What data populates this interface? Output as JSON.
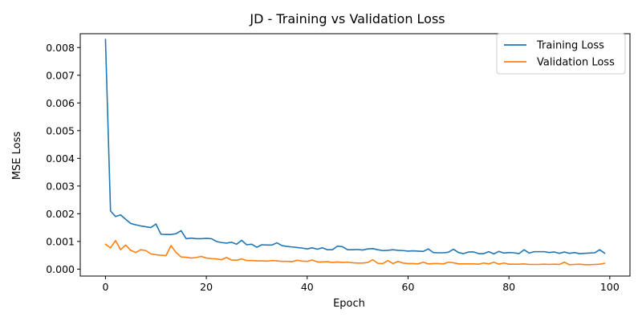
{
  "chart_data": {
    "type": "line",
    "title": "JD - Training vs Validation Loss",
    "xlabel": "Epoch",
    "ylabel": "MSE Loss",
    "xlim": [
      -5,
      104
    ],
    "ylim": [
      -0.00025,
      0.0085
    ],
    "xticks": [
      0,
      20,
      40,
      60,
      80,
      100
    ],
    "xtick_labels": [
      "0",
      "20",
      "40",
      "60",
      "80",
      "100"
    ],
    "yticks": [
      0.0,
      0.001,
      0.002,
      0.003,
      0.004,
      0.005,
      0.006,
      0.007,
      0.008
    ],
    "ytick_labels": [
      "0.000",
      "0.001",
      "0.002",
      "0.003",
      "0.004",
      "0.005",
      "0.006",
      "0.007",
      "0.008"
    ],
    "grid": false,
    "legend_position": "top-right",
    "series": [
      {
        "name": "Training Loss",
        "color": "#1f77b4",
        "x": [
          0,
          1,
          2,
          3,
          4,
          5,
          6,
          7,
          8,
          9,
          10,
          11,
          12,
          13,
          14,
          15,
          16,
          17,
          18,
          19,
          20,
          21,
          22,
          23,
          24,
          25,
          26,
          27,
          28,
          29,
          30,
          31,
          32,
          33,
          34,
          35,
          36,
          37,
          38,
          39,
          40,
          41,
          42,
          43,
          44,
          45,
          46,
          47,
          48,
          49,
          50,
          51,
          52,
          53,
          54,
          55,
          56,
          57,
          58,
          59,
          60,
          61,
          62,
          63,
          64,
          65,
          66,
          67,
          68,
          69,
          70,
          71,
          72,
          73,
          74,
          75,
          76,
          77,
          78,
          79,
          80,
          81,
          82,
          83,
          84,
          85,
          86,
          87,
          88,
          89,
          90,
          91,
          92,
          93,
          94,
          95,
          96,
          97,
          98,
          99
        ],
        "values": [
          0.0083,
          0.0021,
          0.0019,
          0.00196,
          0.0018,
          0.00165,
          0.0016,
          0.00156,
          0.00153,
          0.0015,
          0.00163,
          0.00126,
          0.00125,
          0.00125,
          0.00128,
          0.00139,
          0.0011,
          0.00112,
          0.0011,
          0.0011,
          0.00111,
          0.0011,
          0.001,
          0.00096,
          0.00094,
          0.00097,
          0.0009,
          0.00104,
          0.00088,
          0.0009,
          0.00079,
          0.00088,
          0.00087,
          0.00087,
          0.00095,
          0.00085,
          0.00082,
          0.0008,
          0.00078,
          0.00076,
          0.00073,
          0.00077,
          0.00072,
          0.00077,
          0.0007,
          0.0007,
          0.00083,
          0.00081,
          0.0007,
          0.0007,
          0.00071,
          0.00069,
          0.00073,
          0.00074,
          0.0007,
          0.00067,
          0.00068,
          0.0007,
          0.00068,
          0.00067,
          0.00065,
          0.00066,
          0.00065,
          0.00064,
          0.00073,
          0.0006,
          0.00059,
          0.00059,
          0.00061,
          0.00072,
          0.0006,
          0.00056,
          0.00062,
          0.00062,
          0.00056,
          0.00056,
          0.00063,
          0.00055,
          0.00064,
          0.00058,
          0.0006,
          0.00059,
          0.00056,
          0.0007,
          0.00058,
          0.00063,
          0.00063,
          0.00063,
          0.0006,
          0.00062,
          0.00057,
          0.00062,
          0.00057,
          0.0006,
          0.00056,
          0.00057,
          0.00058,
          0.00059,
          0.0007,
          0.00057
        ]
      },
      {
        "name": "Validation Loss",
        "color": "#ff7f0e",
        "x": [
          0,
          1,
          2,
          3,
          4,
          5,
          6,
          7,
          8,
          9,
          10,
          11,
          12,
          13,
          14,
          15,
          16,
          17,
          18,
          19,
          20,
          21,
          22,
          23,
          24,
          25,
          26,
          27,
          28,
          29,
          30,
          31,
          32,
          33,
          34,
          35,
          36,
          37,
          38,
          39,
          40,
          41,
          42,
          43,
          44,
          45,
          46,
          47,
          48,
          49,
          50,
          51,
          52,
          53,
          54,
          55,
          56,
          57,
          58,
          59,
          60,
          61,
          62,
          63,
          64,
          65,
          66,
          67,
          68,
          69,
          70,
          71,
          72,
          73,
          74,
          75,
          76,
          77,
          78,
          79,
          80,
          81,
          82,
          83,
          84,
          85,
          86,
          87,
          88,
          89,
          90,
          91,
          92,
          93,
          94,
          95,
          96,
          97,
          98,
          99
        ],
        "values": [
          0.0009,
          0.00077,
          0.00103,
          0.0007,
          0.00087,
          0.00068,
          0.0006,
          0.0007,
          0.00067,
          0.00055,
          0.00052,
          0.0005,
          0.00049,
          0.00085,
          0.0006,
          0.00044,
          0.00043,
          0.0004,
          0.00042,
          0.00046,
          0.0004,
          0.00038,
          0.00037,
          0.00034,
          0.00042,
          0.00033,
          0.00032,
          0.00037,
          0.00031,
          0.00031,
          0.0003,
          0.0003,
          0.00029,
          0.00031,
          0.0003,
          0.00028,
          0.00028,
          0.00027,
          0.00032,
          0.00029,
          0.00028,
          0.00033,
          0.00026,
          0.00026,
          0.00027,
          0.00024,
          0.00026,
          0.00024,
          0.00025,
          0.00023,
          0.00022,
          0.00022,
          0.00024,
          0.00034,
          0.00021,
          0.0002,
          0.00031,
          0.0002,
          0.00028,
          0.00022,
          0.0002,
          0.0002,
          0.00019,
          0.00025,
          0.00019,
          0.0002,
          0.0002,
          0.00019,
          0.00025,
          0.00023,
          0.00019,
          0.00019,
          0.00019,
          0.00019,
          0.00018,
          0.00022,
          0.00019,
          0.00025,
          0.00018,
          0.00022,
          0.00018,
          0.00018,
          0.00018,
          0.00019,
          0.00017,
          0.00017,
          0.00017,
          0.00018,
          0.00017,
          0.00018,
          0.00017,
          0.00025,
          0.00016,
          0.00017,
          0.00018,
          0.00016,
          0.00016,
          0.00017,
          0.00018,
          0.00021
        ]
      }
    ]
  }
}
